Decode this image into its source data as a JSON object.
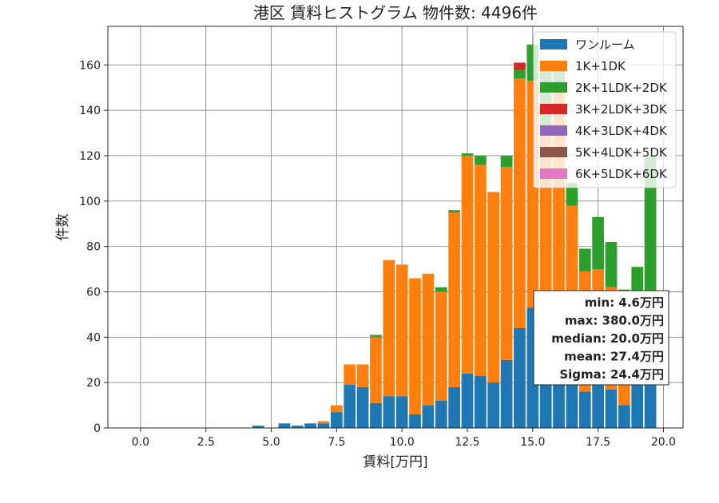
{
  "chart_data": {
    "type": "bar",
    "stacked": true,
    "title": "港区 賃料ヒストグラム  物件数: 4496件",
    "xlabel": "賃料[万円]",
    "ylabel": "件数",
    "xlim": [
      -1.25,
      20.75
    ],
    "ylim": [
      0,
      177
    ],
    "xticks": [
      "0.0",
      "2.5",
      "5.0",
      "7.5",
      "10.0",
      "12.5",
      "15.0",
      "17.5",
      "20.0"
    ],
    "xtick_values": [
      0,
      2.5,
      5,
      7.5,
      10,
      12.5,
      15,
      17.5,
      20
    ],
    "yticks": [
      "0",
      "20",
      "40",
      "60",
      "80",
      "100",
      "120",
      "140",
      "160"
    ],
    "ytick_values": [
      0,
      20,
      40,
      60,
      80,
      100,
      120,
      140,
      160
    ],
    "grid": true,
    "legend_position": "top-right",
    "bin_width": 0.5,
    "x": [
      4.5,
      5.5,
      6.0,
      6.5,
      7.0,
      7.5,
      8.0,
      8.5,
      9.0,
      9.5,
      10.0,
      10.5,
      11.0,
      11.5,
      12.0,
      12.5,
      13.0,
      13.5,
      14.0,
      14.5,
      15.0,
      15.5,
      16.0,
      16.5,
      17.0,
      17.5,
      18.0,
      18.5,
      19.0,
      19.5
    ],
    "series": [
      {
        "name": "ワンルーム",
        "color": "#1f77b4",
        "values": [
          1,
          2,
          1,
          2,
          2,
          7,
          19,
          18,
          11,
          14,
          14,
          6,
          10,
          12,
          18,
          24,
          23,
          20,
          30,
          44,
          53,
          40,
          35,
          25,
          16,
          20,
          17,
          10,
          20,
          20
        ]
      },
      {
        "name": "1K+1DK",
        "color": "#ff7f0e",
        "values": [
          0,
          0,
          0,
          0,
          1,
          3,
          9,
          10,
          29,
          60,
          58,
          60,
          58,
          48,
          77,
          96,
          93,
          84,
          85,
          110,
          100,
          90,
          115,
          73,
          53,
          50,
          45,
          14,
          20,
          20
        ]
      },
      {
        "name": "2K+1LDK+2DK",
        "color": "#2ca02c",
        "values": [
          0,
          0,
          0,
          0,
          0,
          0,
          0,
          0,
          1,
          0,
          0,
          0,
          0,
          2,
          1,
          1,
          4,
          0,
          5,
          4,
          16,
          28,
          10,
          10,
          10,
          23,
          20,
          37,
          31,
          80
        ]
      },
      {
        "name": "3K+2LDK+3DK",
        "color": "#d62728",
        "values": [
          0,
          0,
          0,
          0,
          0,
          0,
          0,
          0,
          0,
          0,
          0,
          0,
          0,
          0,
          0,
          0,
          0,
          0,
          0,
          3,
          0,
          0,
          0,
          0,
          0,
          0,
          0,
          0,
          0,
          0
        ]
      },
      {
        "name": "4K+3LDK+4DK",
        "color": "#9467bd",
        "values": [
          0,
          0,
          0,
          0,
          0,
          0,
          0,
          0,
          0,
          0,
          0,
          0,
          0,
          0,
          0,
          0,
          0,
          0,
          0,
          0,
          0,
          0,
          0,
          0,
          0,
          0,
          0,
          0,
          0,
          0
        ]
      },
      {
        "name": "5K+4LDK+5DK",
        "color": "#8c564b",
        "values": [
          0,
          0,
          0,
          0,
          0,
          0,
          0,
          0,
          0,
          0,
          0,
          0,
          0,
          0,
          0,
          0,
          0,
          0,
          0,
          0,
          0,
          0,
          0,
          0,
          0,
          0,
          0,
          0,
          0,
          0
        ]
      },
      {
        "name": "6K+5LDK+6DK",
        "color": "#e377c2",
        "values": [
          0,
          0,
          0,
          0,
          0,
          0,
          0,
          0,
          0,
          0,
          0,
          0,
          0,
          0,
          0,
          0,
          0,
          0,
          0,
          0,
          0,
          0,
          0,
          0,
          0,
          0,
          0,
          0,
          0,
          0
        ]
      }
    ],
    "annotation": [
      "min: 4.6万円",
      "max: 380.0万円",
      "median: 20.0万円",
      "mean: 27.4万円",
      "Sigma: 24.4万円"
    ]
  }
}
